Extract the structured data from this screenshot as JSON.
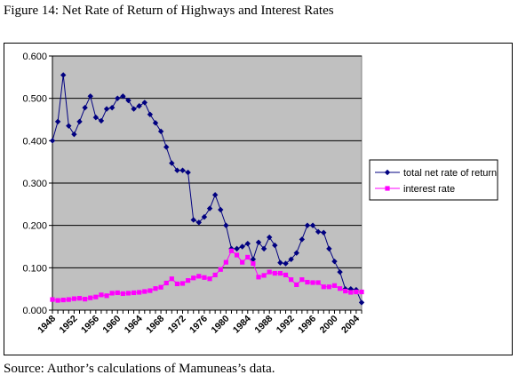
{
  "figure": {
    "title": "Figure 14:  Net Rate of Return of Highways and Interest Rates",
    "source": "Source:  Author’s calculations of Mamuneas’s data."
  },
  "colors": {
    "plot_bg": "#c0c0c0",
    "series1": "#000080",
    "series2": "#ff00ff",
    "grid": "#000000"
  },
  "chart_data": {
    "type": "line",
    "title": "",
    "xlabel": "",
    "ylabel": "",
    "ylim": [
      0,
      0.6
    ],
    "yticks": [
      "0.000",
      "0.100",
      "0.200",
      "0.300",
      "0.400",
      "0.500",
      "0.600"
    ],
    "xticks": [
      "1948",
      "1952",
      "1956",
      "1960",
      "1964",
      "1968",
      "1972",
      "1976",
      "1980",
      "1984",
      "1988",
      "1992",
      "1996",
      "2000",
      "2004"
    ],
    "grid": true,
    "legend_position": "right",
    "x": [
      1948,
      1949,
      1950,
      1951,
      1952,
      1953,
      1954,
      1955,
      1956,
      1957,
      1958,
      1959,
      1960,
      1961,
      1962,
      1963,
      1964,
      1965,
      1966,
      1967,
      1968,
      1969,
      1970,
      1971,
      1972,
      1973,
      1974,
      1975,
      1976,
      1977,
      1978,
      1979,
      1980,
      1981,
      1982,
      1983,
      1984,
      1985,
      1986,
      1987,
      1988,
      1989,
      1990,
      1991,
      1992,
      1993,
      1994,
      1995,
      1996,
      1997,
      1998,
      1999,
      2000,
      2001,
      2002,
      2003,
      2004,
      2005
    ],
    "series": [
      {
        "name": "total net rate of return",
        "marker": "diamond",
        "values": [
          0.4,
          0.445,
          0.555,
          0.435,
          0.415,
          0.445,
          0.478,
          0.505,
          0.455,
          0.447,
          0.475,
          0.478,
          0.5,
          0.505,
          0.495,
          0.475,
          0.482,
          0.49,
          0.462,
          0.442,
          0.422,
          0.385,
          0.347,
          0.33,
          0.33,
          0.325,
          0.213,
          0.207,
          0.22,
          0.24,
          0.272,
          0.237,
          0.2,
          0.145,
          0.145,
          0.15,
          0.157,
          0.12,
          0.16,
          0.145,
          0.172,
          0.153,
          0.112,
          0.11,
          0.12,
          0.135,
          0.167,
          0.2,
          0.2,
          0.185,
          0.183,
          0.145,
          0.115,
          0.09,
          0.05,
          0.05,
          0.048,
          0.018
        ]
      },
      {
        "name": "interest rate",
        "marker": "square",
        "values": [
          0.025,
          0.023,
          0.024,
          0.025,
          0.027,
          0.028,
          0.026,
          0.029,
          0.031,
          0.036,
          0.034,
          0.04,
          0.041,
          0.039,
          0.04,
          0.041,
          0.042,
          0.044,
          0.046,
          0.051,
          0.054,
          0.064,
          0.074,
          0.062,
          0.063,
          0.07,
          0.076,
          0.08,
          0.077,
          0.074,
          0.083,
          0.096,
          0.113,
          0.14,
          0.13,
          0.113,
          0.125,
          0.11,
          0.078,
          0.082,
          0.09,
          0.087,
          0.087,
          0.083,
          0.072,
          0.06,
          0.072,
          0.066,
          0.065,
          0.065,
          0.055,
          0.055,
          0.058,
          0.051,
          0.045,
          0.042,
          0.043,
          0.043
        ]
      }
    ]
  }
}
